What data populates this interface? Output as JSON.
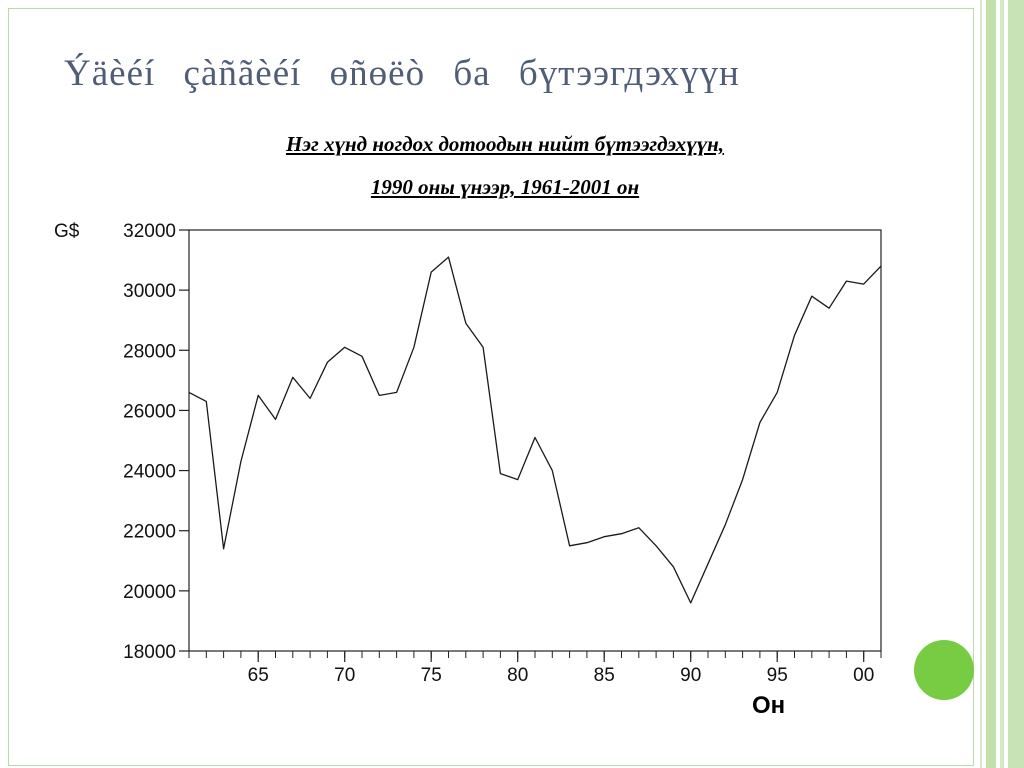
{
  "slide": {
    "title": "Ýäèéí çàñãèéí өñөëò ба бүтээгдэхүүн",
    "subtitle_line1": "Нэг хүнд ногдох дотоодын нийт бүтээгдэхүүн,",
    "subtitle_line2": "1990 оны үнээр, 1961-2001 он"
  },
  "chart_data": {
    "type": "line",
    "title": "",
    "xlabel": "Он",
    "ylabel": "G$",
    "xlim": [
      1961,
      2001
    ],
    "ylim": [
      18000,
      32000
    ],
    "x_ticks": [
      65,
      70,
      75,
      80,
      85,
      90,
      95,
      0
    ],
    "x_tick_labels": [
      "65",
      "70",
      "75",
      "80",
      "85",
      "90",
      "95",
      "00"
    ],
    "y_ticks": [
      18000,
      20000,
      22000,
      24000,
      26000,
      28000,
      30000,
      32000
    ],
    "y_tick_labels": [
      "18000",
      "20000",
      "22000",
      "24000",
      "26000",
      "28000",
      "30000",
      "32000"
    ],
    "grid": false,
    "x": [
      1961,
      1962,
      1963,
      1964,
      1965,
      1966,
      1967,
      1968,
      1969,
      1970,
      1971,
      1972,
      1973,
      1974,
      1975,
      1976,
      1977,
      1978,
      1979,
      1980,
      1981,
      1982,
      1983,
      1984,
      1985,
      1986,
      1987,
      1988,
      1989,
      1990,
      1991,
      1992,
      1993,
      1994,
      1995,
      1996,
      1997,
      1998,
      1999,
      2000,
      2001
    ],
    "values": [
      26600,
      26300,
      21400,
      24300,
      26500,
      25700,
      27100,
      26400,
      27600,
      28100,
      27800,
      26500,
      26600,
      28100,
      30600,
      31100,
      28900,
      28100,
      23900,
      23700,
      25100,
      24000,
      21500,
      21600,
      21800,
      21900,
      22100,
      21500,
      20800,
      19600,
      20900,
      22200,
      23700,
      25600,
      26600,
      28500,
      29800,
      29400,
      30300,
      30200,
      30800
    ]
  },
  "decor": {
    "accent_green": "#77cc44",
    "title_color": "#4f5d77",
    "stripe_green": "#c2e0aa"
  }
}
